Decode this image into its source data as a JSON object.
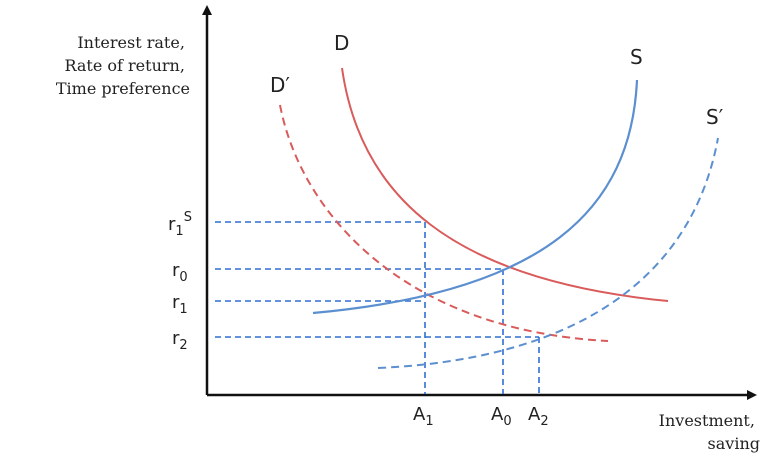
{
  "y_axis": {
    "title_lines": [
      "Interest rate,",
      "Rate of return,",
      "Time preference"
    ]
  },
  "x_axis": {
    "title_lines": [
      "Investment,",
      "saving"
    ]
  },
  "curves": {
    "d": "D",
    "d_prime": "D′",
    "s": "S",
    "s_prime": "S′"
  },
  "y_ticks": {
    "r1s": {
      "base": "r",
      "sub": "1",
      "sup": "S"
    },
    "r0": {
      "base": "r",
      "sub": "0"
    },
    "r1": {
      "base": "r",
      "sub": "1"
    },
    "r2": {
      "base": "r",
      "sub": "2"
    }
  },
  "x_ticks": {
    "a1": {
      "base": "A",
      "sub": "1"
    },
    "a0": {
      "base": "A",
      "sub": "0"
    },
    "a2": {
      "base": "A",
      "sub": "2"
    }
  },
  "colors": {
    "demand": "#d95b5b",
    "supply": "#5b8fd0",
    "guide": "#2f6fd1",
    "axis": "#111111"
  }
}
